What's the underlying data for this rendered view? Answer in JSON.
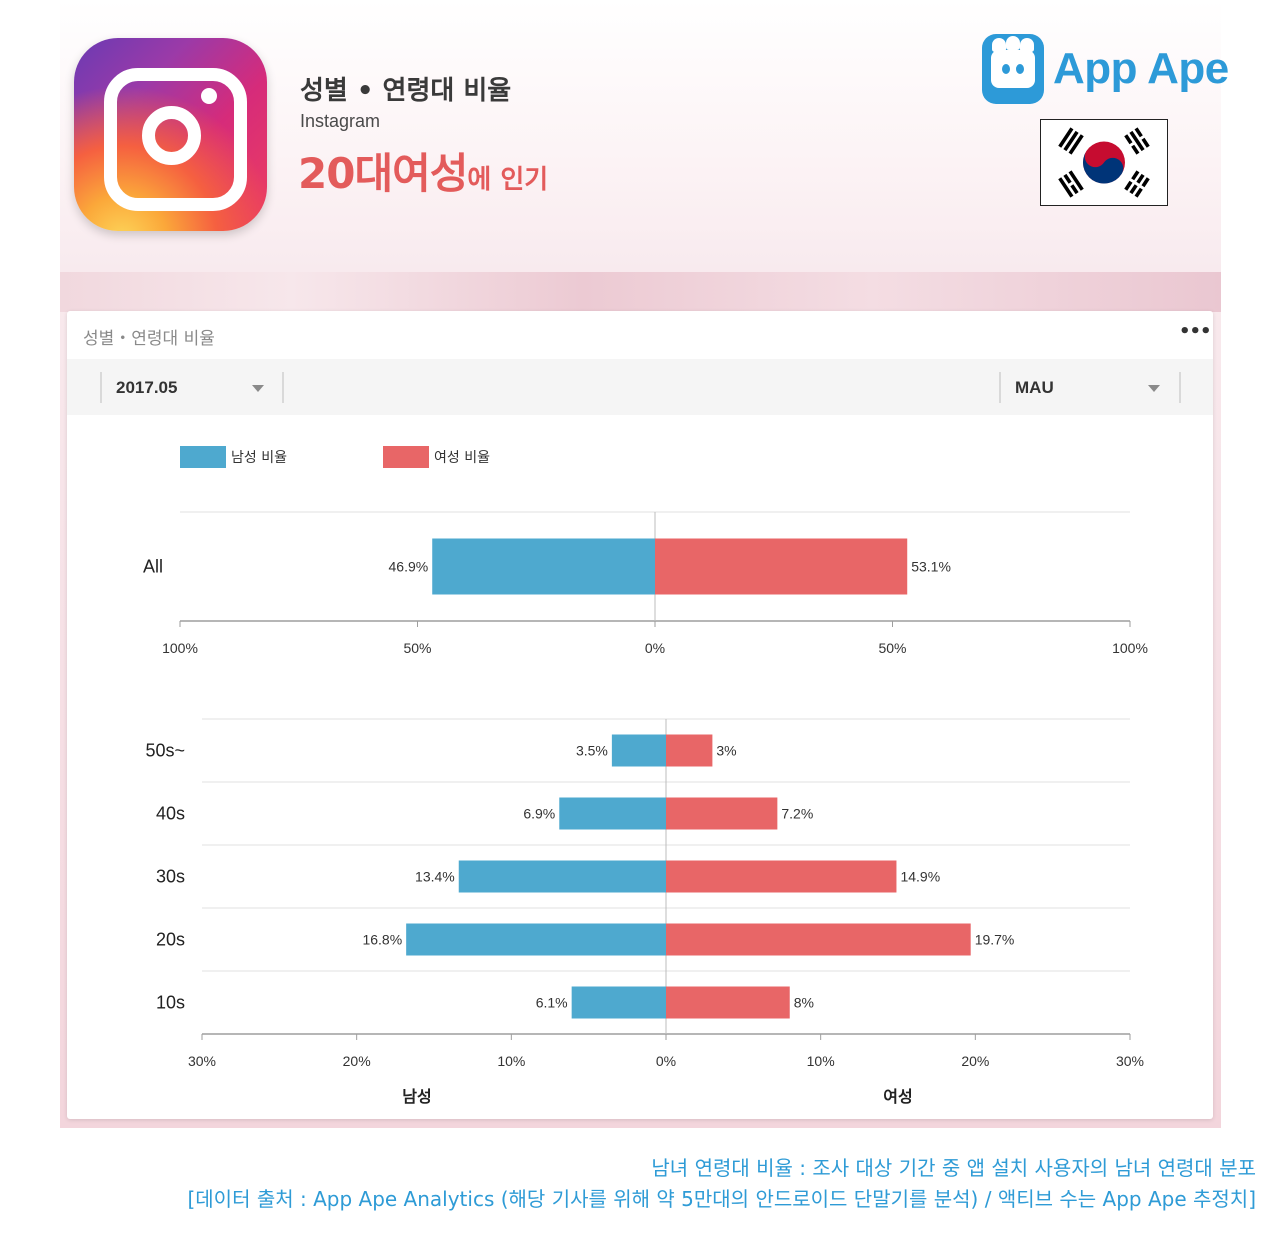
{
  "header": {
    "title": "성별 • 연령대 비율",
    "app_name": "Instagram",
    "headline_big": "20대여성",
    "headline_small": "에 인기",
    "headline_color": "#e35b5b"
  },
  "logo": {
    "text": "App Ape",
    "color": "#2d9ad8",
    "icon": "app-ape-monkey-icon"
  },
  "flag": {
    "icon": "south-korea-flag-icon"
  },
  "app_icon": {
    "icon": "instagram-camera-icon"
  },
  "card": {
    "title": "성별・연령대 비율",
    "menu_label": "•••",
    "period_select": "2017.05",
    "metric_select": "MAU"
  },
  "footnote": {
    "line1": "남녀 연령대 비율 : 조사 대상 기간 중 앱 설치 사용자의 남녀 연령대 분포",
    "line2": "[데이터 출처 : App Ape Analytics (해당 기사를 위해 약 5만대의 안드로이드 단말기를 분석) / 액티브 수는 App Ape 추정치]",
    "color": "#2e9bd6"
  },
  "chart_data": [
    {
      "type": "bar",
      "orientation": "horizontal-diverging",
      "categories": [
        "All"
      ],
      "series": [
        {
          "name": "남성 비율",
          "color": "#4ea9cf",
          "values": [
            46.9
          ],
          "labels": [
            "46.9%"
          ]
        },
        {
          "name": "여성 비율",
          "color": "#e86667",
          "values": [
            53.1
          ],
          "labels": [
            "53.1%"
          ]
        }
      ],
      "xlim": [
        -100,
        100
      ],
      "xticks": [
        "100%",
        "50%",
        "0%",
        "50%",
        "100%"
      ],
      "xtick_values": [
        -100,
        -50,
        0,
        50,
        100
      ],
      "legend": "top-left",
      "grid": true
    },
    {
      "type": "bar",
      "orientation": "horizontal-diverging",
      "categories": [
        "50s~",
        "40s",
        "30s",
        "20s",
        "10s"
      ],
      "series": [
        {
          "name": "남성 비율",
          "color": "#4ea9cf",
          "values": [
            3.5,
            6.9,
            13.4,
            16.8,
            6.1
          ],
          "labels": [
            "3.5%",
            "6.9%",
            "13.4%",
            "16.8%",
            "6.1%"
          ]
        },
        {
          "name": "여성 비율",
          "color": "#e86667",
          "values": [
            3,
            7.2,
            14.9,
            19.7,
            8
          ],
          "labels": [
            "3%",
            "7.2%",
            "14.9%",
            "19.7%",
            "8%"
          ]
        }
      ],
      "xlim": [
        -30,
        30
      ],
      "xticks": [
        "30%",
        "20%",
        "10%",
        "0%",
        "10%",
        "20%",
        "30%"
      ],
      "xtick_values": [
        -30,
        -20,
        -10,
        0,
        10,
        20,
        30
      ],
      "side_labels": [
        "남성",
        "여성"
      ],
      "grid": true
    }
  ]
}
